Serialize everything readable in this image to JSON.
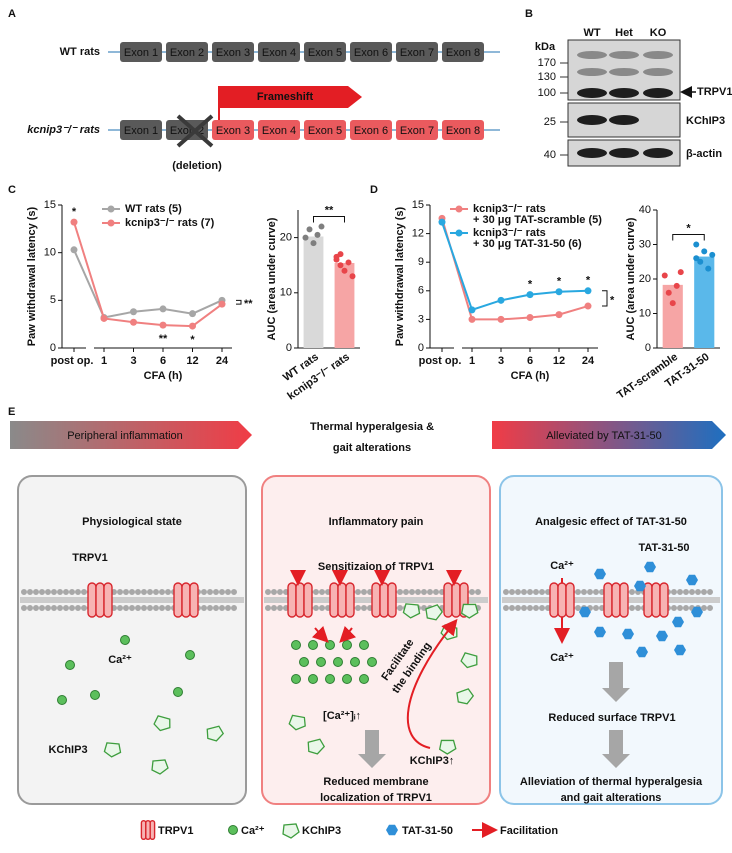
{
  "panel_labels": [
    "A",
    "B",
    "C",
    "D",
    "E"
  ],
  "panel_a": {
    "rows": [
      {
        "label": "WT rats",
        "exons": [
          "Exon 1",
          "Exon 2",
          "Exon 3",
          "Exon 4",
          "Exon 5",
          "Exon 6",
          "Exon 7",
          "Exon 8"
        ]
      },
      {
        "label": "kcnip3⁻/⁻ rats",
        "exons": [
          "Exon 1",
          "Exon 2",
          "Exon 3",
          "Exon 4",
          "Exon 5",
          "Exon 6",
          "Exon 7",
          "Exon 8"
        ]
      }
    ],
    "frameshift": "Frameshift",
    "deletion": "(deletion)"
  },
  "panel_b": {
    "unit": "kDa",
    "lanes": [
      "WT",
      "Het",
      "KO"
    ],
    "markers": [
      170,
      130,
      100,
      25,
      40
    ],
    "bands": [
      "TRPV1",
      "KChIP3",
      "β-actin"
    ]
  },
  "chart_data": [
    {
      "type": "line",
      "ylabel": "Paw withdrawal latency (s)",
      "xlabel": "CFA (h)",
      "categories": [
        "post op.",
        "1",
        "3",
        "6",
        "12",
        "24"
      ],
      "ylim": [
        0,
        15
      ],
      "yticks": [
        0,
        5,
        10,
        15
      ],
      "series": [
        {
          "name": "WT rats (5)",
          "color": "#a6a6a6",
          "values": [
            10.3,
            3.2,
            3.8,
            4.1,
            3.6,
            5.0
          ]
        },
        {
          "name": "kcnip3⁻/⁻ rats (7)",
          "color": "#f08080",
          "values": [
            13.2,
            3.1,
            2.7,
            2.4,
            2.3,
            4.6
          ]
        }
      ],
      "annotations": [
        "*",
        "**",
        "*"
      ],
      "bracket": "**"
    },
    {
      "type": "bar",
      "ylabel": "AUC (area under curve)",
      "categories": [
        "WT rats",
        "kcnip3⁻/⁻ rats"
      ],
      "values": [
        20.2,
        15.4
      ],
      "colors": [
        "#d9d9d9",
        "#f6a5a5"
      ],
      "points": [
        [
          20,
          21.5,
          19,
          20.5,
          22
        ],
        [
          16,
          17,
          14,
          15.5,
          13,
          16.5,
          15
        ]
      ],
      "point_colors": [
        "#7f7f7f",
        "#e8454a"
      ],
      "ylim": [
        0,
        25
      ],
      "yticks": [
        0,
        10,
        20
      ],
      "bracket": "**"
    },
    {
      "type": "line",
      "ylabel": "Paw withdrawal latency (s)",
      "xlabel": "CFA (h)",
      "categories": [
        "post op.",
        "1",
        "3",
        "6",
        "12",
        "24"
      ],
      "ylim": [
        0,
        15
      ],
      "yticks": [
        0,
        3,
        6,
        9,
        12,
        15
      ],
      "series": [
        {
          "name": "kcnip3⁻/⁻ rats + 30 μg TAT-scramble (5)",
          "color": "#f08080",
          "values": [
            13.6,
            3.0,
            3.0,
            3.2,
            3.5,
            4.4
          ]
        },
        {
          "name": "kcnip3⁻/⁻ rats + 30 μg TAT-31-50 (6)",
          "color": "#29a8e0",
          "values": [
            13.2,
            4.0,
            5.0,
            5.6,
            5.9,
            6.0
          ]
        }
      ],
      "annotations": [
        "*",
        "*",
        "*"
      ],
      "bracket": "*"
    },
    {
      "type": "bar",
      "ylabel": "AUC (area under curve)",
      "categories": [
        "TAT-scramble",
        "TAT-31-50"
      ],
      "values": [
        18.3,
        26.5
      ],
      "colors": [
        "#f6a5a5",
        "#5ab8ea"
      ],
      "points": [
        [
          21,
          16,
          13,
          18,
          22
        ],
        [
          30,
          25,
          28,
          23,
          27,
          26
        ]
      ],
      "point_colors": [
        "#e8454a",
        "#1b8fd0"
      ],
      "ylim": [
        0,
        40
      ],
      "yticks": [
        0,
        10,
        20,
        30,
        40
      ],
      "bracket": "*"
    }
  ],
  "panel_e": {
    "headers": [
      "Peripheral inflammation",
      "Thermal hyperalgesia &",
      "gait alterations",
      "Alleviated by TAT-31-50"
    ],
    "boxes": [
      {
        "title": "Physiological state",
        "labels": [
          "TRPV1",
          "Ca²⁺",
          "KChIP3"
        ]
      },
      {
        "title": "Inflammatory pain",
        "labels": [
          "Sensitizaion of TRPV1",
          "[Ca²⁺]ᵢ↑",
          "Facilitate",
          "the binding",
          "KChIP3↑",
          "Reduced membrane",
          "localization of TRPV1"
        ]
      },
      {
        "title": "Analgesic effect of TAT-31-50",
        "labels": [
          "TAT-31-50",
          "Ca²⁺",
          "Ca²⁺",
          "Reduced surface TRPV1",
          "Alleviation of thermal hyperalgesia",
          "and gait alterations"
        ]
      }
    ],
    "legend": [
      "TRPV1",
      "Ca²⁺",
      "KChIP3",
      "TAT-31-50",
      "Facilitation"
    ]
  }
}
